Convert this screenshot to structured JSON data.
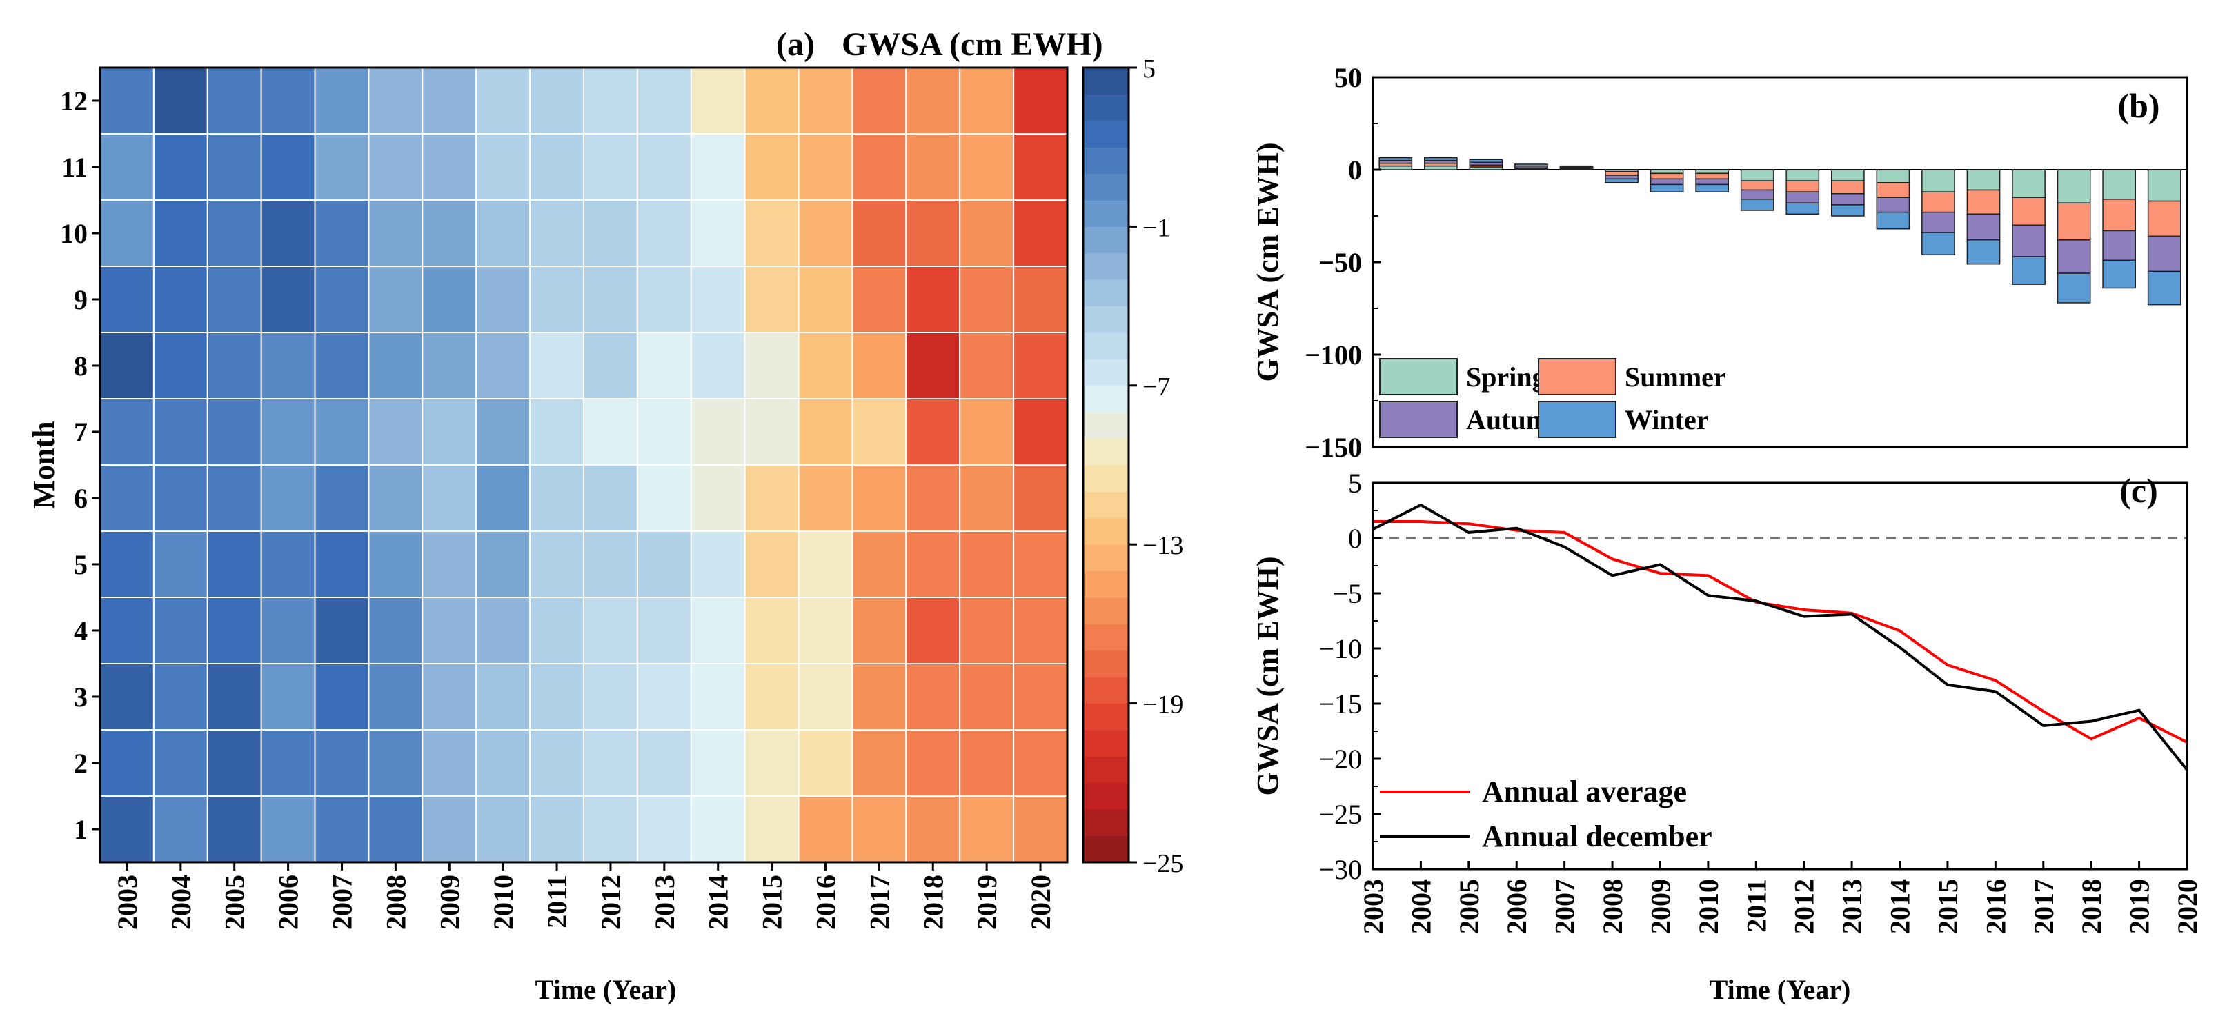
{
  "chart_data": [
    {
      "panel_label": "(a)",
      "type": "heatmap",
      "title": "GWSA (cm EWH)",
      "xlabel": "Time (Year)",
      "ylabel": "Month",
      "x": [
        "2003",
        "2004",
        "2005",
        "2006",
        "2007",
        "2008",
        "2009",
        "2010",
        "2011",
        "2012",
        "2013",
        "2014",
        "2015",
        "2016",
        "2017",
        "2018",
        "2019",
        "2020"
      ],
      "y": [
        "1",
        "2",
        "3",
        "4",
        "5",
        "6",
        "7",
        "8",
        "9",
        "10",
        "11",
        "12"
      ],
      "values": [
        [
          3,
          0,
          3,
          -1,
          1,
          1,
          -3,
          -4,
          -5,
          -6,
          -7,
          -8,
          -10,
          -15,
          -15,
          -16,
          -15,
          -16
        ],
        [
          2.5,
          1,
          3.5,
          1,
          1,
          0,
          -3,
          -4,
          -5,
          -6,
          -6,
          -8,
          -10,
          -11,
          -16,
          -17,
          -17,
          -17
        ],
        [
          3,
          1,
          3,
          -1,
          2,
          0,
          -3,
          -4,
          -5,
          -6,
          -7,
          -8,
          -11,
          -10,
          -16,
          -17,
          -17,
          -17
        ],
        [
          2,
          1,
          2,
          0,
          3,
          0,
          -3,
          -3,
          -5,
          -6,
          -6,
          -8,
          -11,
          -10,
          -16,
          -19,
          -17,
          -17
        ],
        [
          2,
          0,
          2,
          1,
          2,
          -1,
          -3,
          -2,
          -5,
          -5,
          -5,
          -7,
          -12,
          -10,
          -16,
          -17,
          -17,
          -17
        ],
        [
          1,
          1,
          1,
          -1,
          1,
          -2,
          -4,
          -1,
          -5,
          -5,
          -8,
          -9,
          -12,
          -14,
          -15,
          -17,
          -16,
          -18
        ],
        [
          1,
          1,
          1,
          -1,
          -1,
          -3,
          -4,
          -2,
          -6,
          -8,
          -8,
          -9,
          -9,
          -13,
          -12,
          -19,
          -15,
          -20
        ],
        [
          4,
          2,
          1,
          0,
          1,
          -1,
          -2,
          -3,
          -7,
          -5,
          -8,
          -7,
          -9,
          -13,
          -15,
          -22,
          -17,
          -19
        ],
        [
          2,
          2,
          1,
          3,
          1,
          -2,
          -1,
          -3,
          -5,
          -5,
          -6,
          -7,
          -12,
          -13,
          -17,
          -20,
          -17,
          -18
        ],
        [
          -1,
          2,
          1,
          3,
          1,
          -2,
          -2,
          -4,
          -5,
          -5,
          -6,
          -8,
          -12,
          -14,
          -18,
          -18,
          -16,
          -20
        ],
        [
          -1,
          2,
          1,
          2,
          -2,
          -3,
          -3,
          -5,
          -5,
          -6,
          -6,
          -8,
          -13,
          -14,
          -17,
          -16,
          -15,
          -20
        ],
        [
          1,
          4,
          1,
          1,
          -1,
          -3,
          -3,
          -5,
          -5,
          -6,
          -6,
          -10,
          -13,
          -14,
          -17,
          -16,
          -15,
          -21
        ]
      ],
      "colorbar": {
        "min": -25,
        "max": 5,
        "ticks": [
          5,
          -1,
          -7,
          -13,
          -19,
          -25
        ],
        "tick_labels": [
          "5",
          "−1",
          "−7",
          "−13",
          "−19",
          "−25"
        ],
        "levels": 30,
        "colors": [
          "#8c1a1a",
          "#c02020",
          "#e03a2a",
          "#ee6a45",
          "#f89a5e",
          "#fbc27c",
          "#f8e9b8",
          "#ddf0f5",
          "#b8d6ea",
          "#8fb6da",
          "#5f90c9",
          "#3a6db7",
          "#2a4f8c"
        ]
      }
    },
    {
      "panel_label": "(b)",
      "type": "bar",
      "stacked": true,
      "ylabel": "GWSA (cm EWH)",
      "ylim": [
        -150,
        50
      ],
      "yticks": [
        50,
        0,
        -50,
        -100,
        -150
      ],
      "ytick_labels": [
        "50",
        "0",
        "−50",
        "−100",
        "−150"
      ],
      "categories": [
        "2003",
        "2004",
        "2005",
        "2006",
        "2007",
        "2008",
        "2009",
        "2010",
        "2011",
        "2012",
        "2013",
        "2014",
        "2015",
        "2016",
        "2017",
        "2018",
        "2019",
        "2020"
      ],
      "series": [
        {
          "name": "Spring",
          "color": "#9fd3c0",
          "values": [
            2,
            2,
            1.5,
            0.5,
            0.5,
            -1,
            -2,
            -2,
            -6,
            -6,
            -6,
            -7,
            -12,
            -11,
            -15,
            -18,
            -16,
            -17
          ]
        },
        {
          "name": "Summer",
          "color": "#fb9375",
          "values": [
            1.5,
            1.5,
            1,
            0.5,
            0.5,
            -2,
            -3,
            -3,
            -5,
            -6,
            -7,
            -8,
            -11,
            -13,
            -15,
            -20,
            -17,
            -19
          ]
        },
        {
          "name": "Autumn",
          "color": "#8e7fbf",
          "values": [
            1.5,
            1.5,
            1.5,
            1,
            0.5,
            -2,
            -3,
            -3,
            -5,
            -6,
            -6,
            -8,
            -11,
            -14,
            -17,
            -18,
            -16,
            -19
          ]
        },
        {
          "name": "Winter",
          "color": "#5b9bd5",
          "values": [
            1.5,
            1.5,
            1.5,
            1,
            0.5,
            -2,
            -4,
            -4,
            -6,
            -6,
            -6,
            -9,
            -12,
            -13,
            -15,
            -16,
            -15,
            -18
          ]
        }
      ],
      "legend_location": "lower-left"
    },
    {
      "panel_label": "(c)",
      "type": "line",
      "xlabel": "Time (Year)",
      "ylabel": "GWSA (cm EWH)",
      "ylim": [
        -30,
        5
      ],
      "yticks": [
        5,
        0,
        -5,
        -10,
        -15,
        -20,
        -25,
        -30
      ],
      "ytick_labels": [
        "5",
        "0",
        "−5",
        "−10",
        "−15",
        "−20",
        "−25",
        "−30"
      ],
      "x": [
        "2003",
        "2004",
        "2005",
        "2006",
        "2007",
        "2008",
        "2009",
        "2010",
        "2011",
        "2012",
        "2013",
        "2014",
        "2015",
        "2016",
        "2017",
        "2018",
        "2019",
        "2020"
      ],
      "series": [
        {
          "name": "Annual average",
          "color": "#ff0000",
          "values": [
            1.5,
            1.5,
            1.3,
            0.7,
            0.5,
            -1.9,
            -3.2,
            -3.4,
            -5.8,
            -6.5,
            -6.8,
            -8.4,
            -11.5,
            -12.9,
            -15.7,
            -18.2,
            -16.3,
            -18.5
          ]
        },
        {
          "name": "Annual december",
          "color": "#000000",
          "values": [
            0.8,
            3,
            0.5,
            0.9,
            -0.8,
            -3.4,
            -2.4,
            -5.2,
            -5.7,
            -7.1,
            -6.9,
            -9.9,
            -13.3,
            -13.9,
            -17.0,
            -16.6,
            -15.6,
            -21.0
          ]
        }
      ],
      "reference_line": {
        "y": 0,
        "style": "dashed",
        "color": "#777777"
      },
      "legend_location": "lower-left"
    }
  ]
}
